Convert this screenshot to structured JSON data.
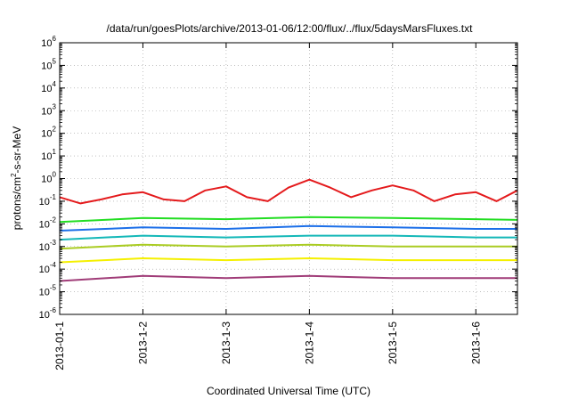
{
  "chart_data": {
    "type": "line",
    "title": "/data/run/goesPlots/archive/2013-01-06/12:00/flux/../flux/5daysMarsFluxes.txt",
    "xlabel": "Coordinated Universal Time (UTC)",
    "ylabel": {
      "prefix": "protons/cm",
      "sup": "2",
      "suffix": "-s-sr-MeV"
    },
    "yscale": "log",
    "ylim": [
      1e-06,
      1000000.0
    ],
    "xlim": [
      "2013-01-01",
      "2013-01-06 12:00"
    ],
    "grid": true,
    "y_ticks": [
      {
        "value": 1e-06,
        "base": "10",
        "exp": "-6"
      },
      {
        "value": 1e-05,
        "base": "10",
        "exp": "-5"
      },
      {
        "value": 0.0001,
        "base": "10",
        "exp": "-4"
      },
      {
        "value": 0.001,
        "base": "10",
        "exp": "-3"
      },
      {
        "value": 0.01,
        "base": "10",
        "exp": "-2"
      },
      {
        "value": 0.1,
        "base": "10",
        "exp": "-1"
      },
      {
        "value": 1.0,
        "base": "10",
        "exp": "0"
      },
      {
        "value": 10.0,
        "base": "10",
        "exp": "1"
      },
      {
        "value": 100.0,
        "base": "10",
        "exp": "2"
      },
      {
        "value": 1000.0,
        "base": "10",
        "exp": "3"
      },
      {
        "value": 10000.0,
        "base": "10",
        "exp": "4"
      },
      {
        "value": 100000.0,
        "base": "10",
        "exp": "5"
      },
      {
        "value": 1000000.0,
        "base": "10",
        "exp": "6"
      }
    ],
    "x_ticks": [
      {
        "value": "2013-01-01",
        "label": "2013-01-1"
      },
      {
        "value": "2013-01-02",
        "label": "2013-1-2"
      },
      {
        "value": "2013-01-03",
        "label": "2013-1-3"
      },
      {
        "value": "2013-01-04",
        "label": "2013-1-4"
      },
      {
        "value": "2013-01-05",
        "label": "2013-1-5"
      },
      {
        "value": "2013-01-06",
        "label": "2013-1-6"
      }
    ],
    "series": [
      {
        "color": "#e41a1c",
        "x": [
          "2013-01-01 00:00",
          "2013-01-01 06:00",
          "2013-01-01 12:00",
          "2013-01-01 18:00",
          "2013-01-02 00:00",
          "2013-01-02 06:00",
          "2013-01-02 12:00",
          "2013-01-02 18:00",
          "2013-01-03 00:00",
          "2013-01-03 06:00",
          "2013-01-03 12:00",
          "2013-01-03 18:00",
          "2013-01-04 00:00",
          "2013-01-04 06:00",
          "2013-01-04 12:00",
          "2013-01-04 18:00",
          "2013-01-05 00:00",
          "2013-01-05 06:00",
          "2013-01-05 12:00",
          "2013-01-05 18:00",
          "2013-01-06 00:00",
          "2013-01-06 06:00",
          "2013-01-06 12:00"
        ],
        "values": [
          0.15,
          0.08,
          0.12,
          0.2,
          0.25,
          0.12,
          0.1,
          0.3,
          0.45,
          0.15,
          0.1,
          0.4,
          0.9,
          0.4,
          0.15,
          0.3,
          0.5,
          0.3,
          0.1,
          0.2,
          0.25,
          0.1,
          0.3
        ]
      },
      {
        "color": "#22dd22",
        "x": [
          "2013-01-01 00:00",
          "2013-01-02 00:00",
          "2013-01-03 00:00",
          "2013-01-04 00:00",
          "2013-01-05 00:00",
          "2013-01-06 00:00",
          "2013-01-06 12:00"
        ],
        "values": [
          0.012,
          0.018,
          0.016,
          0.02,
          0.018,
          0.016,
          0.015
        ]
      },
      {
        "color": "#1c6fe8",
        "x": [
          "2013-01-01 00:00",
          "2013-01-02 00:00",
          "2013-01-03 00:00",
          "2013-01-04 00:00",
          "2013-01-05 00:00",
          "2013-01-06 00:00",
          "2013-01-06 12:00"
        ],
        "values": [
          0.005,
          0.007,
          0.006,
          0.008,
          0.007,
          0.006,
          0.006
        ]
      },
      {
        "color": "#14b8b8",
        "x": [
          "2013-01-01 00:00",
          "2013-01-02 00:00",
          "2013-01-03 00:00",
          "2013-01-04 00:00",
          "2013-01-05 00:00",
          "2013-01-06 00:00",
          "2013-01-06 12:00"
        ],
        "values": [
          0.002,
          0.003,
          0.0025,
          0.003,
          0.003,
          0.0025,
          0.0025
        ]
      },
      {
        "color": "#aacc22",
        "x": [
          "2013-01-01 00:00",
          "2013-01-02 00:00",
          "2013-01-03 00:00",
          "2013-01-04 00:00",
          "2013-01-05 00:00",
          "2013-01-06 00:00",
          "2013-01-06 12:00"
        ],
        "values": [
          0.0008,
          0.0012,
          0.001,
          0.0012,
          0.001,
          0.001,
          0.001
        ]
      },
      {
        "color": "#f5f000",
        "x": [
          "2013-01-01 00:00",
          "2013-01-02 00:00",
          "2013-01-03 00:00",
          "2013-01-04 00:00",
          "2013-01-05 00:00",
          "2013-01-06 00:00",
          "2013-01-06 12:00"
        ],
        "values": [
          0.0002,
          0.0003,
          0.00025,
          0.0003,
          0.00025,
          0.00025,
          0.00025
        ]
      },
      {
        "color": "#a03c78",
        "x": [
          "2013-01-01 00:00",
          "2013-01-02 00:00",
          "2013-01-03 00:00",
          "2013-01-04 00:00",
          "2013-01-05 00:00",
          "2013-01-06 00:00",
          "2013-01-06 12:00"
        ],
        "values": [
          3e-05,
          5e-05,
          4e-05,
          5e-05,
          4e-05,
          4e-05,
          4e-05
        ]
      }
    ]
  }
}
